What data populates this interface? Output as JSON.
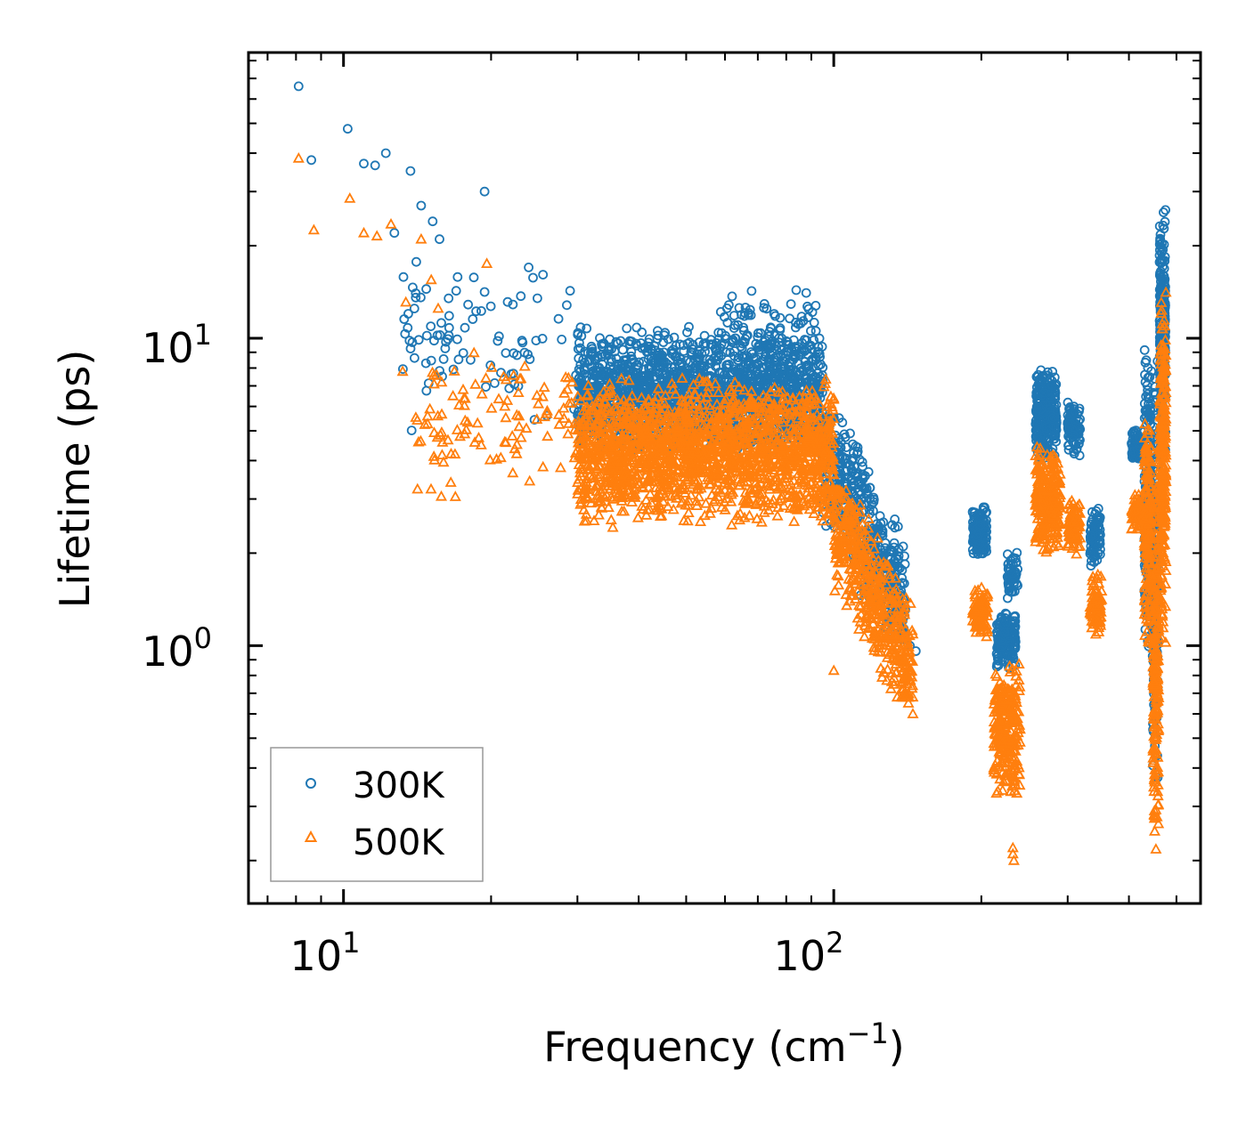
{
  "chart_data": {
    "type": "scatter",
    "xscale": "log",
    "yscale": "log",
    "xlim": [
      6.4,
      560
    ],
    "ylim": [
      0.145,
      85
    ],
    "xlabel": "Frequency (cm",
    "xlabel_sup": "−1",
    "xlabel_end": ")",
    "ylabel": "Lifetime (ps)",
    "x_tick_labels": [
      {
        "value": 10,
        "base": "10",
        "exp": "1"
      },
      {
        "value": 100,
        "base": "10",
        "exp": "2"
      }
    ],
    "y_tick_labels": [
      {
        "value": 1,
        "base": "10",
        "exp": "0"
      },
      {
        "value": 10,
        "base": "10",
        "exp": "1"
      }
    ],
    "legend_position": "lower-left",
    "series": [
      {
        "name": "300K",
        "marker": "circle",
        "color": "#1f77b4",
        "clusters": [
          {
            "x": [
              8.1,
              8.6,
              10.2,
              11.0,
              11.6,
              12.2,
              12.7,
              13.7,
              14.4,
              15.2,
              15.7,
              19.4
            ],
            "y": [
              66,
              38,
              48,
              37,
              36.5,
              40,
              22,
              35,
              27,
              24,
              21,
              30
            ]
          },
          {
            "xmin": 13,
            "xmax": 30,
            "ymin": 4.8,
            "ymax": 20,
            "n": 90,
            "seed": 11
          },
          {
            "xmin": 30,
            "xmax": 95,
            "ymin": 4.2,
            "ymax": 11,
            "n": 1700,
            "seed": 12
          },
          {
            "xmin": 58,
            "xmax": 92,
            "ymin": 9,
            "ymax": 14.5,
            "n": 60,
            "seed": 13
          },
          {
            "xmin": 95,
            "xmax": 140,
            "ymin": 1.05,
            "ymax": 5.5,
            "n": 500,
            "seed": 14,
            "trend": "down"
          },
          {
            "x": [
              140,
              143,
              147
            ],
            "y": [
              1.1,
              1.0,
              0.96
            ]
          },
          {
            "xmin": 192,
            "xmax": 205,
            "ymin": 1.9,
            "ymax": 2.9,
            "n": 120,
            "seed": 15
          },
          {
            "xmin": 215,
            "xmax": 235,
            "ymin": 0.82,
            "ymax": 1.35,
            "n": 160,
            "seed": 16
          },
          {
            "xmin": 226,
            "xmax": 238,
            "ymin": 1.4,
            "ymax": 2.05,
            "n": 50,
            "seed": 17
          },
          {
            "xmin": 258,
            "xmax": 285,
            "ymin": 3.9,
            "ymax": 8.0,
            "n": 260,
            "seed": 18
          },
          {
            "xmin": 300,
            "xmax": 318,
            "ymin": 4.0,
            "ymax": 6.4,
            "n": 90,
            "seed": 19
          },
          {
            "xmin": 333,
            "xmax": 350,
            "ymin": 1.75,
            "ymax": 2.85,
            "n": 80,
            "seed": 20
          },
          {
            "xmin": 405,
            "xmax": 425,
            "ymin": 3.9,
            "ymax": 5.1,
            "n": 90,
            "seed": 21
          },
          {
            "xmin": 430,
            "xmax": 445,
            "ymin": 0.9,
            "ymax": 9.5,
            "n": 200,
            "seed": 22
          },
          {
            "xmin": 447,
            "xmax": 458,
            "ymin": 0.32,
            "ymax": 9.5,
            "n": 180,
            "seed": 23
          },
          {
            "xmin": 462,
            "xmax": 475,
            "ymin": 4.0,
            "ymax": 27,
            "n": 260,
            "seed": 24
          }
        ]
      },
      {
        "name": "500K",
        "marker": "triangle",
        "color": "#ff7f0e",
        "clusters": [
          {
            "x": [
              8.1,
              8.7,
              10.3,
              11.0,
              11.7,
              12.5,
              14.4,
              15.1,
              15.6,
              19.6,
              13.4,
              13.2
            ],
            "y": [
              38.5,
              22.5,
              28.5,
              22,
              21.5,
              23.5,
              21,
              15.5,
              12.5,
              17.5,
              13.1,
              7.8
            ]
          },
          {
            "xmin": 14,
            "xmax": 30,
            "ymin": 2.8,
            "ymax": 10,
            "n": 110,
            "seed": 31
          },
          {
            "xmin": 30,
            "xmax": 100,
            "ymin": 2.4,
            "ymax": 7.5,
            "n": 1800,
            "seed": 32
          },
          {
            "xmin": 100,
            "xmax": 145,
            "ymin": 0.68,
            "ymax": 3.2,
            "n": 500,
            "seed": 33,
            "trend": "down"
          },
          {
            "x": [
              100,
              142,
              145
            ],
            "y": [
              0.83,
              0.65,
              0.6
            ]
          },
          {
            "xmin": 192,
            "xmax": 206,
            "ymin": 1.05,
            "ymax": 1.6,
            "n": 90,
            "seed": 34
          },
          {
            "xmin": 212,
            "xmax": 240,
            "ymin": 0.3,
            "ymax": 0.95,
            "n": 260,
            "seed": 35
          },
          {
            "x": [
              232,
              232,
              233
            ],
            "y": [
              0.22,
              0.21,
              0.2
            ]
          },
          {
            "xmin": 258,
            "xmax": 290,
            "ymin": 1.95,
            "ymax": 4.5,
            "n": 260,
            "seed": 36
          },
          {
            "xmin": 300,
            "xmax": 318,
            "ymin": 1.95,
            "ymax": 3.1,
            "n": 90,
            "seed": 37
          },
          {
            "xmin": 333,
            "xmax": 352,
            "ymin": 1.05,
            "ymax": 1.75,
            "n": 80,
            "seed": 38
          },
          {
            "xmin": 405,
            "xmax": 425,
            "ymin": 2.3,
            "ymax": 3.2,
            "n": 70,
            "seed": 39
          },
          {
            "xmin": 430,
            "xmax": 445,
            "ymin": 0.95,
            "ymax": 5.5,
            "n": 180,
            "seed": 40
          },
          {
            "xmin": 448,
            "xmax": 460,
            "ymin": 0.2,
            "ymax": 3.6,
            "n": 200,
            "seed": 41
          },
          {
            "xmin": 462,
            "xmax": 476,
            "ymin": 0.9,
            "ymax": 15.5,
            "n": 260,
            "seed": 42
          }
        ]
      }
    ]
  }
}
